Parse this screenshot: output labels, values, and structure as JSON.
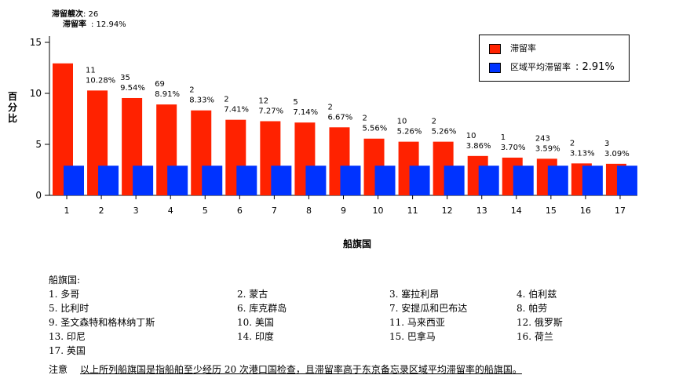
{
  "corner": {
    "count_label": "滞留艘次",
    "count_value": ": 26",
    "rate_label": "滞留率",
    "rate_value": ": 12.94%"
  },
  "legend": {
    "series1_label": "滞留率",
    "series2_label": "区域平均滞留率",
    "series2_value": ": 2.91%",
    "series1_color": "#ff2200",
    "series2_color": "#0033ff"
  },
  "chart_data": {
    "type": "bar",
    "categories": [
      "1",
      "2",
      "3",
      "4",
      "5",
      "6",
      "7",
      "8",
      "9",
      "10",
      "11",
      "12",
      "13",
      "14",
      "15",
      "16",
      "17"
    ],
    "series": [
      {
        "name": "滞留率",
        "values": [
          12.94,
          10.28,
          9.54,
          8.91,
          8.33,
          7.41,
          7.27,
          7.14,
          6.67,
          5.56,
          5.26,
          5.26,
          3.86,
          3.7,
          3.59,
          3.13,
          3.09
        ]
      },
      {
        "name": "区域平均滞留率",
        "values": [
          2.91,
          2.91,
          2.91,
          2.91,
          2.91,
          2.91,
          2.91,
          2.91,
          2.91,
          2.91,
          2.91,
          2.91,
          2.91,
          2.91,
          2.91,
          2.91,
          2.91
        ]
      }
    ],
    "detention_counts": [
      "",
      "11",
      "35",
      "69",
      "2",
      "2",
      "12",
      "5",
      "2",
      "2",
      "10",
      "2",
      "10",
      "1",
      "243",
      "2",
      "3"
    ],
    "rate_labels": [
      "",
      "10.28%",
      "9.54%",
      "8.91%",
      "8.33%",
      "7.41%",
      "7.27%",
      "7.14%",
      "6.67%",
      "5.56%",
      "5.26%",
      "5.26%",
      "3.86%",
      "3.70%",
      "3.59%",
      "3.13%",
      "3.09%"
    ],
    "yticks": [
      "0",
      "5",
      "10",
      "15"
    ],
    "ylim": [
      0,
      15
    ],
    "ylabel": "百分比",
    "xlabel": "船旗国",
    "grid": false,
    "legend_position": "top-right"
  },
  "notes": {
    "title": "船旗国:",
    "flags": [
      "1. 多哥",
      "2. 蒙古",
      "3. 塞拉利昂",
      "4. 伯利兹",
      "5. 比利时",
      "6. 库克群岛",
      "7. 安提瓜和巴布达",
      "8. 帕劳",
      "9. 圣文森特和格林纳丁斯",
      "10. 美国",
      "11. 马来西亚",
      "12. 俄罗斯",
      "13. 印尼",
      "14. 印度",
      "15. 巴拿马",
      "16. 荷兰",
      "17. 英国"
    ],
    "footnote_label": "注意",
    "footnote_text": "以上所列船旗国是指船舶至少经历 20 次港口国检查，且滞留率高于东京备忘录区域平均滞留率的船旗国。"
  }
}
